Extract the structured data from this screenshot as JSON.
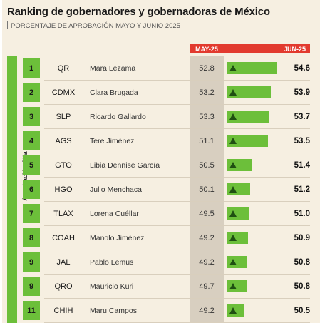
{
  "title": "Ranking de gobernadores y gobernadoras de México",
  "subtitle": "PORCENTAJE DE APROBACIÓN MAYO Y JUNIO 2025",
  "side_label": "Aprobación Alta",
  "colors": {
    "green": "#6cbf3a",
    "red": "#e23a2e",
    "dark_green": "#1f4f12",
    "background": "#f6efe1",
    "may_column": "#d8cfc0"
  },
  "chart_data": {
    "type": "table",
    "title": "Ranking de gobernadores y gobernadoras de México",
    "subtitle": "PORCENTAJE DE APROBACIÓN MAYO Y JUNIO 2025",
    "columns": [
      "MAY-25",
      "JUN-25"
    ],
    "rows": [
      {
        "rank": "1",
        "state": "QR",
        "governor": "Mara Lezama",
        "may": 52.8,
        "jun": 54.6
      },
      {
        "rank": "2",
        "state": "CDMX",
        "governor": "Clara Brugada",
        "may": 53.2,
        "jun": 53.9
      },
      {
        "rank": "3",
        "state": "SLP",
        "governor": "Ricardo Gallardo",
        "may": 53.3,
        "jun": 53.7
      },
      {
        "rank": "4",
        "state": "AGS",
        "governor": "Tere Jiménez",
        "may": 51.1,
        "jun": 53.5
      },
      {
        "rank": "5",
        "state": "GTO",
        "governor": "Libia Dennise García",
        "may": 50.5,
        "jun": 51.4
      },
      {
        "rank": "6",
        "state": "HGO",
        "governor": "Julio Menchaca",
        "may": 50.1,
        "jun": 51.2
      },
      {
        "rank": "7",
        "state": "TLAX",
        "governor": "Lorena Cuéllar",
        "may": 49.5,
        "jun": 51.0
      },
      {
        "rank": "8",
        "state": "COAH",
        "governor": "Manolo Jiménez",
        "may": 49.2,
        "jun": 50.9
      },
      {
        "rank": "9",
        "state": "JAL",
        "governor": "Pablo Lemus",
        "may": 49.2,
        "jun": 50.8
      },
      {
        "rank": "9",
        "state": "QRO",
        "governor": "Mauricio Kuri",
        "may": 49.7,
        "jun": 50.8
      },
      {
        "rank": "11",
        "state": "CHIH",
        "governor": "Maru Campos",
        "may": 49.2,
        "jun": 50.5
      }
    ]
  }
}
